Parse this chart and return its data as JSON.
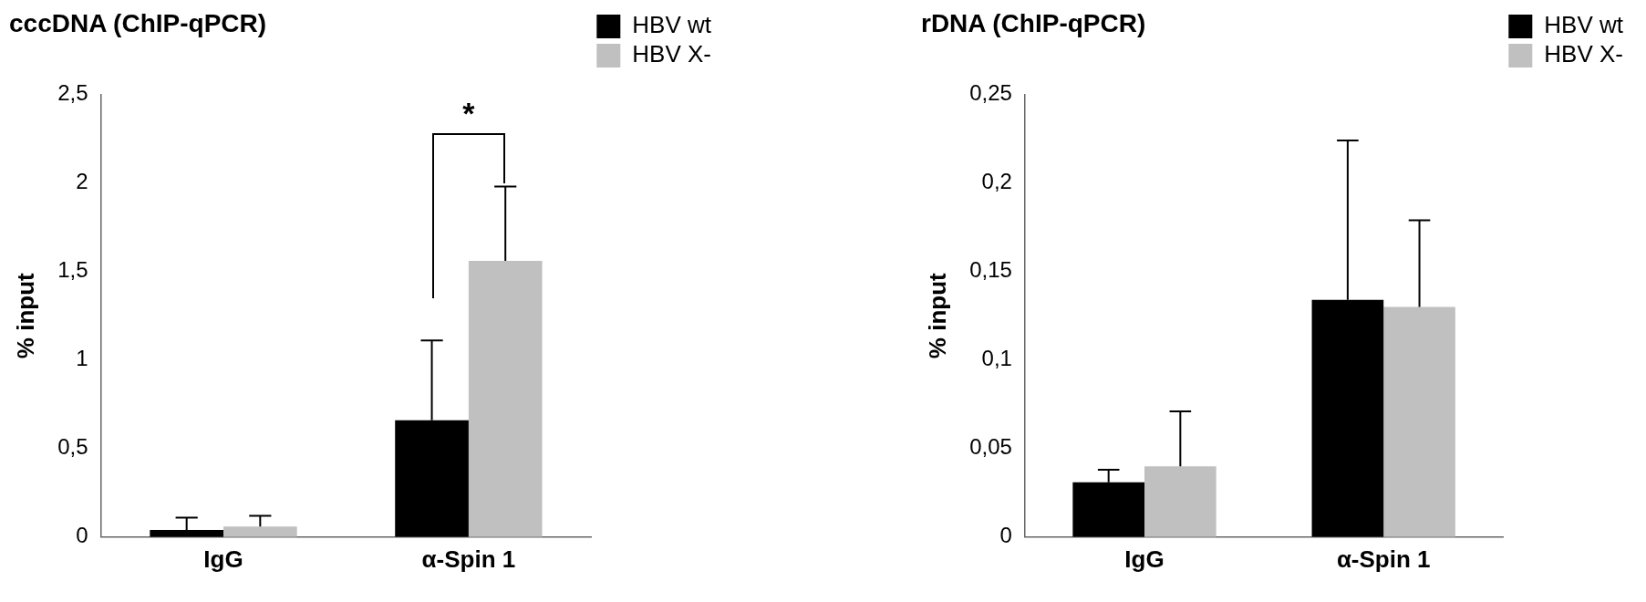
{
  "chart_data": [
    {
      "type": "bar",
      "title": "cccDNA (ChIP-qPCR)",
      "ylabel": "% input",
      "categories": [
        "IgG",
        "α-Spin 1"
      ],
      "series": [
        {
          "name": "HBV wt",
          "color": "#000000",
          "values": [
            0.04,
            0.66
          ],
          "errors": [
            [
              0.04,
              0.11
            ],
            [
              0.66,
              1.11
            ]
          ]
        },
        {
          "name": "HBV X-",
          "color": "#c0c0c0",
          "values": [
            0.06,
            1.56
          ],
          "errors": [
            [
              0.06,
              0.12
            ],
            [
              1.56,
              1.98
            ]
          ]
        }
      ],
      "ylim": [
        0,
        2.5
      ],
      "yticks": [
        0,
        {
          "value": 0.5,
          "label": "0,5"
        },
        1,
        {
          "value": 1.5,
          "label": "1,5"
        },
        2,
        {
          "value": 2.5,
          "label": "2,5"
        }
      ],
      "annotations": [
        "*"
      ],
      "grid": false,
      "legend": "top right"
    },
    {
      "type": "bar",
      "title": "rDNA (ChIP-qPCR)",
      "ylabel": "% input",
      "categories": [
        "IgG",
        "α-Spin 1"
      ],
      "series": [
        {
          "name": "HBV wt",
          "color": "#000000",
          "values": [
            0.031,
            0.134
          ],
          "errors": [
            [
              0.031,
              0.038
            ],
            [
              0.134,
              0.224
            ]
          ]
        },
        {
          "name": "HBV X-",
          "color": "#c0c0c0",
          "values": [
            0.04,
            0.13
          ],
          "errors": [
            [
              0.04,
              0.071
            ],
            [
              0.13,
              0.179
            ]
          ]
        }
      ],
      "ylim": [
        0,
        0.25
      ],
      "yticks": [
        0,
        {
          "value": 0.05,
          "label": "0,05"
        },
        {
          "value": 0.1,
          "label": "0,1"
        },
        {
          "value": 0.15,
          "label": "0,15"
        },
        {
          "value": 0.2,
          "label": "0,2"
        },
        {
          "value": 0.25,
          "label": "0,25"
        }
      ],
      "grid": false,
      "legend": "top right"
    }
  ]
}
